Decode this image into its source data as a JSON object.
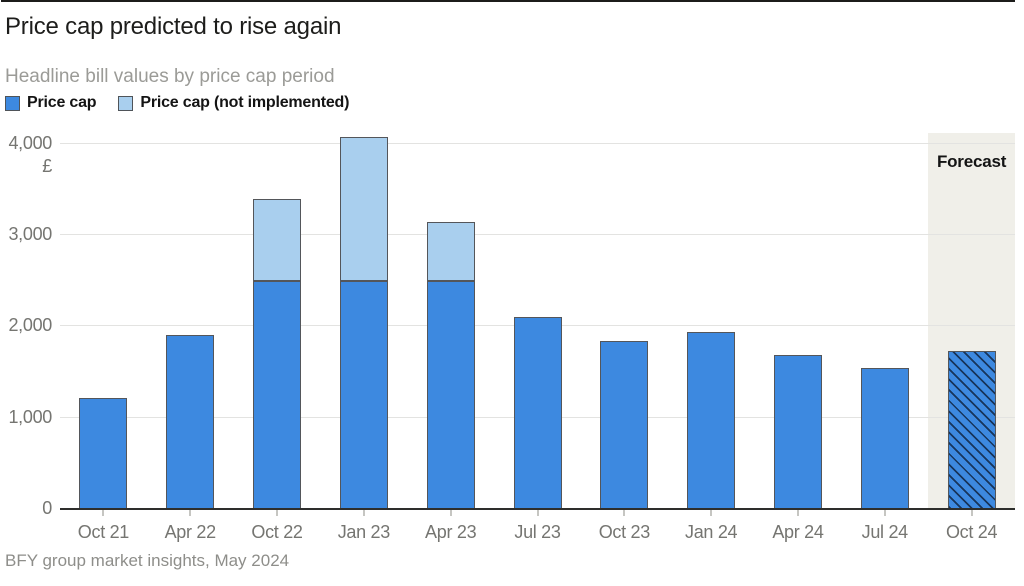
{
  "header": {
    "title": "Price cap predicted to rise again",
    "subtitle": "Headline bill values by price cap period"
  },
  "chart_data": {
    "type": "bar",
    "stacked": true,
    "title": "Price cap predicted to rise again",
    "subtitle": "Headline bill values by price cap period",
    "unit_label": "£",
    "categories": [
      "Oct 21",
      "Apr 22",
      "Oct 22",
      "Jan 23",
      "Apr 23",
      "Jul 23",
      "Oct 23",
      "Jan 24",
      "Apr 24",
      "Jul 24",
      "Oct 24"
    ],
    "series": [
      {
        "name": "Price cap",
        "color": "#3d89e0",
        "values": [
          1220,
          1910,
          2500,
          2500,
          2500,
          2100,
          1840,
          1940,
          1690,
          1550,
          1730
        ]
      },
      {
        "name": "Price cap (not implemented)",
        "color": "#a9cfee",
        "values": [
          0,
          0,
          900,
          1580,
          640,
          0,
          0,
          0,
          0,
          0,
          0
        ]
      }
    ],
    "totals": [
      1220,
      1910,
      3400,
      4080,
      3140,
      2100,
      1840,
      1940,
      1690,
      1550,
      1730
    ],
    "forecast": {
      "label": "Forecast",
      "category": "Oct 24",
      "band_color": "#f0efe9",
      "bar_style": "hatched"
    },
    "y_ticks": [
      0,
      1000,
      2000,
      3000,
      4000
    ],
    "y_tick_labels": [
      "0",
      "1,000",
      "2,000",
      "3,000",
      "4,000"
    ],
    "ylim": [
      0,
      4120
    ],
    "grid": true,
    "legend_position": "top-left"
  },
  "footer": {
    "source": "BFY group market insights, May 2024"
  }
}
